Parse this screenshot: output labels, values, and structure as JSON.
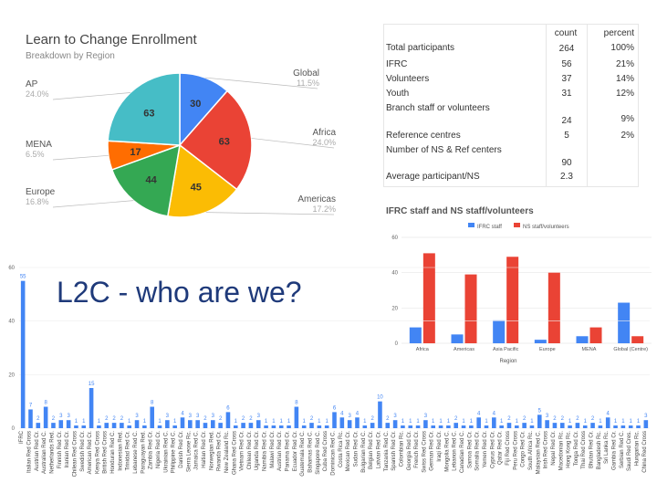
{
  "pie_panel": {
    "title": "Learn to Change Enrollment",
    "subtitle": "Breakdown by Region",
    "colors": [
      "#4285f4",
      "#ea4335",
      "#fbbc04",
      "#34a853",
      "#ff6d01",
      "#46bdc6"
    ],
    "slices": [
      {
        "name": "Global",
        "pct": "11.5%",
        "value": 30
      },
      {
        "name": "Africa",
        "pct": "24.0%",
        "value": 63
      },
      {
        "name": "Americas",
        "pct": "17.2%",
        "value": 45
      },
      {
        "name": "Europe",
        "pct": "16.8%",
        "value": 44
      },
      {
        "name": "MENA",
        "pct": "6.5%",
        "value": 17
      },
      {
        "name": "AP",
        "pct": "24.0%",
        "value": 63
      }
    ]
  },
  "stats_table": {
    "col_count": "count",
    "col_percent": "percent",
    "rows": [
      {
        "label": "Total participants",
        "count": "264",
        "percent": "100%"
      },
      {
        "label": "IFRC",
        "count": "56",
        "percent": "21%"
      },
      {
        "label": "Volunteers",
        "count": "37",
        "percent": "14%"
      },
      {
        "label": "Youth",
        "count": "31",
        "percent": "12%"
      },
      {
        "label": "Branch staff or volunteers",
        "count": "24",
        "percent": "9%"
      },
      {
        "label": "Reference centres",
        "count": "5",
        "percent": "2%"
      },
      {
        "label": "Number of NS & Ref centers",
        "count": "90",
        "percent": ""
      },
      {
        "label": "Average participant/NS",
        "count": "2.3",
        "percent": ""
      }
    ]
  },
  "headline": "L2C - who are we?",
  "chart_data": [
    {
      "type": "bar",
      "title": "IFRC staff and NS staff/volunteers",
      "xlabel": "Region",
      "ylabel": "",
      "ylim": [
        0,
        60
      ],
      "ticks": [
        "0",
        "20",
        "40",
        "60"
      ],
      "categories": [
        "Africa",
        "Americas",
        "Asia Pacific",
        "Europe",
        "MENA",
        "Global (Centre)"
      ],
      "series": [
        {
          "name": "IFRC staff",
          "color": "#4285f4",
          "values": [
            9,
            5,
            13,
            2,
            4,
            23
          ]
        },
        {
          "name": "NS staff/volunteers",
          "color": "#ea4335",
          "values": [
            51,
            39,
            49,
            40,
            9,
            4
          ]
        }
      ]
    },
    {
      "type": "bar",
      "title": "",
      "ylim": [
        0,
        60
      ],
      "ticks": [
        "0",
        "20",
        "40",
        "60"
      ],
      "color": "#4285f4",
      "values": [
        55,
        7,
        2,
        8,
        2,
        3,
        3,
        1,
        1,
        15,
        1,
        2,
        2,
        2,
        1,
        3,
        1,
        8,
        1,
        3,
        1,
        4,
        3,
        3,
        2,
        3,
        2,
        6,
        1,
        2,
        2,
        3,
        1,
        1,
        1,
        1,
        8,
        1,
        2,
        1,
        1,
        6,
        4,
        3,
        4,
        1,
        2,
        10,
        2,
        3,
        1,
        1,
        1,
        3,
        1,
        1,
        1,
        2,
        1,
        1,
        4,
        1,
        4,
        1,
        2,
        1,
        2,
        1,
        5,
        3,
        2,
        2,
        1,
        2,
        1,
        2,
        1,
        4,
        1,
        1,
        1,
        1,
        3
      ],
      "labels": [
        "55",
        "7",
        "2",
        "8",
        "2",
        "3",
        "3",
        "1",
        "1",
        "15",
        "1",
        "2",
        "2",
        "2",
        "1",
        "3",
        "1",
        "8",
        "1",
        "3",
        "1",
        "4",
        "3",
        "3",
        "2",
        "3",
        "2",
        "6",
        "1",
        "2",
        "2",
        "3",
        "1",
        "1",
        "1",
        "1",
        "8",
        "1",
        "2",
        "1",
        "1",
        "6",
        "4",
        "3",
        "4",
        "1",
        "2",
        "10",
        "2",
        "3",
        "1",
        "1",
        "1",
        "3",
        "1",
        "1",
        "1",
        "2",
        "1",
        "1",
        "4",
        "1",
        "4",
        "1",
        "2",
        "1",
        "2",
        "1",
        "5",
        "3",
        "2",
        "2",
        "1",
        "2",
        "1",
        "2",
        "1",
        "4",
        "1",
        "1",
        "1",
        "1",
        "3"
      ],
      "categories": [
        "IFRC",
        "Italian Red Cross",
        "Austrian Red Cr.",
        "Australian Red C.",
        "Netherlands Red.",
        "Finnish Red Cr.",
        "Iranian Red Cr.",
        "Chilean Red Cross",
        "Swedish Red Cr.",
        "American Red Cr.",
        "Kenya Red Cross",
        "British Red Cross",
        "Honduran Red C.",
        "Indonesian Red.",
        "Trinidad Red Cr.",
        "Lebanese Red C.",
        "Paraguayan Red.",
        "Zambia Red Cr.",
        "Nigeria Red Cr.",
        "Ukrainian Red C.",
        "Philippine Red C.",
        "Danish Red Cr.",
        "Sierra Leone Rc.",
        "Jamaica Red C.",
        "Haitian Red Cr.",
        "Norwegian Red.",
        "Rwanda Red Cr.",
        "New Zealand Rc.",
        "Ghana Red Cross",
        "Vietnam Red Cr.",
        "Chilean Red Cr.",
        "Uganda Red Cr.",
        "Namibia Red Cr.",
        "Malawi Red Cr.",
        "Austrian Red Cr.",
        "Panama Red Cr.",
        "Ecuador Red Cr.",
        "Guatemala Red C.",
        "Bahamas Red C.",
        "Singapore Red C.",
        "Cuba Red Cross",
        "Dominican Red C.",
        "Costa Rica Rc.",
        "Mexican Red Cr.",
        "Sudan Red Cr.",
        "Bulgarian Red C.",
        "Belgian Red Cr.",
        "Latvian Red Cr.",
        "Tanzania Red C.",
        "Spanish Red Cr.",
        "Colombian Rc.",
        "Georgia Red Cr.",
        "French Red Cr.",
        "Swiss Red Cross",
        "German Red Cr.",
        "Iraqi Red Cr.",
        "Mongolia Red C.",
        "Lebanon Red C.",
        "Canadian Red C.",
        "Samoa Red Cr.",
        "Somalia Red Cr.",
        "Yemen Red Cr.",
        "Cyprus Red Cr.",
        "Qatar Red Cr.",
        "Fiji Red Cross",
        "Peru Red Cross",
        "Congo Red Cr.",
        "South Africa Rc.",
        "Malaysian Red C.",
        "Irish Red Cross",
        "Nepal Red Cr.",
        "Macedonian Rc.",
        "Hong Kong Rc.",
        "Tonga Red Cr.",
        "Thai Red Cross",
        "Bhutan Red Cr.",
        "Bangladesh Rc.",
        "Sri Lanka Rc.",
        "Gambia Red Cr.",
        "Serbian Red C.",
        "Saudi Red Cres.",
        "Hungarian Rc.",
        "China Red Cross"
      ]
    }
  ]
}
